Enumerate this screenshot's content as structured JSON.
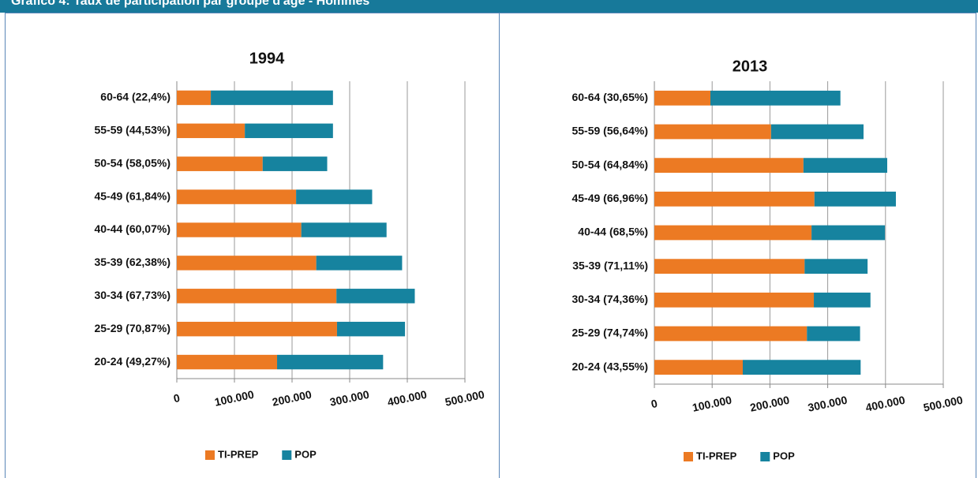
{
  "header": {
    "title": "Gráfico 4: Taux de participation par groupe d'âge - Hommes"
  },
  "chart_data": [
    {
      "type": "bar",
      "orientation": "horizontal",
      "stacked": true,
      "title": "1994",
      "categories": [
        "20-24 (49,27%)",
        "25-29 (70,87%)",
        "30-34 (67,73%)",
        "35-39 (62,38%)",
        "40-44 (60,07%)",
        "45-49 (61,84%)",
        "50-54 (58,05%)",
        "55-59 (44,53%)",
        "60-64 (22,4%)"
      ],
      "series": [
        {
          "name": "TI-PREP",
          "color": "#ec7a23",
          "values": [
            174000,
            278000,
            277000,
            242000,
            216000,
            207000,
            149000,
            118000,
            59000
          ]
        },
        {
          "name": "POP",
          "color": "#16839f",
          "values": [
            184000,
            118000,
            136000,
            149000,
            148000,
            132000,
            112000,
            153000,
            212000
          ]
        }
      ],
      "xlim": [
        0,
        500000
      ],
      "xticks": [
        {
          "value": 0,
          "label": "0"
        },
        {
          "value": 100000,
          "label": "100.000"
        },
        {
          "value": 200000,
          "label": "200.000"
        },
        {
          "value": 300000,
          "label": "300.000"
        },
        {
          "value": 400000,
          "label": "400.000"
        },
        {
          "value": 500000,
          "label": "500.000"
        }
      ],
      "grid": true,
      "legend": "bottom"
    },
    {
      "type": "bar",
      "orientation": "horizontal",
      "stacked": true,
      "title": "2013",
      "categories": [
        "20-24 (43,55%)",
        "25-29 (74,74%)",
        "30-34 (74,36%)",
        "35-39 (71,11%)",
        "40-44 (68,5%)",
        "45-49 (66,96%)",
        "50-54 (64,84%)",
        "55-59 (56,64%)",
        "60-64 (30,65%)"
      ],
      "series": [
        {
          "name": "TI-PREP",
          "color": "#ec7a23",
          "values": [
            153000,
            264000,
            276000,
            260000,
            272000,
            277000,
            258000,
            202000,
            97000
          ]
        },
        {
          "name": "POP",
          "color": "#16839f",
          "values": [
            204000,
            92000,
            98000,
            109000,
            127000,
            141000,
            145000,
            160000,
            225000
          ]
        }
      ],
      "xlim": [
        0,
        500000
      ],
      "xticks": [
        {
          "value": 0,
          "label": "0"
        },
        {
          "value": 100000,
          "label": "100.000"
        },
        {
          "value": 200000,
          "label": "200.000"
        },
        {
          "value": 300000,
          "label": "300.000"
        },
        {
          "value": 400000,
          "label": "400.000"
        },
        {
          "value": 500000,
          "label": "500.000"
        }
      ],
      "grid": true,
      "legend": "bottom"
    }
  ]
}
